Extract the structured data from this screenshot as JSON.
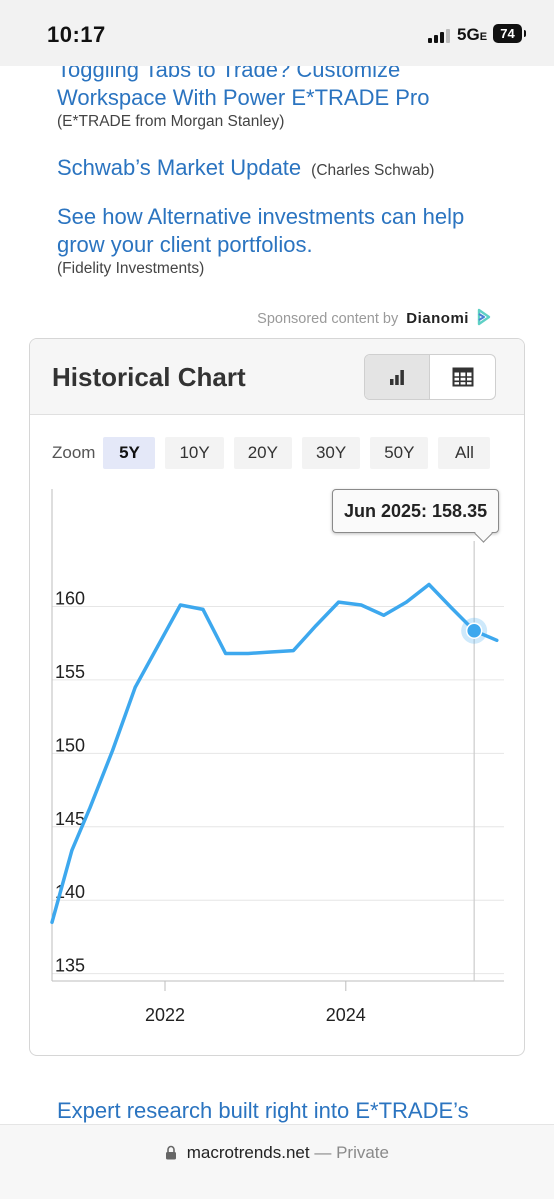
{
  "status_bar": {
    "time": "10:17",
    "network": "5G",
    "network_suffix": "E",
    "battery": "74"
  },
  "sponsored_links": [
    {
      "title_line1": "Toggling Tabs to Trade? Customize",
      "title_line2": "Workspace With Power E*TRADE Pro",
      "source": "(E*TRADE from Morgan Stanley)"
    },
    {
      "title": "Schwab’s Market Update",
      "source": "(Charles Schwab)"
    },
    {
      "title_line1": "See how Alternative investments can help",
      "title_line2": "grow your client portfolios.",
      "source": "(Fidelity Investments)"
    }
  ],
  "sponsored_footer": {
    "text": "Sponsored content by",
    "brand": "Dianomi"
  },
  "card": {
    "title": "Historical Chart",
    "view_buttons": [
      "bar-chart-icon",
      "table-icon"
    ],
    "zoom_label": "Zoom",
    "zoom_options": [
      "5Y",
      "10Y",
      "20Y",
      "30Y",
      "50Y",
      "All"
    ],
    "zoom_selected": "5Y"
  },
  "tooltip": {
    "text": "Jun 2025: 158.35"
  },
  "chart_data": {
    "type": "line",
    "ylim": [
      134.5,
      168
    ],
    "yticks": [
      135,
      140,
      145,
      150,
      155,
      160
    ],
    "xticks": [
      {
        "label": "2022",
        "x": 2022.0
      },
      {
        "label": "2024",
        "x": 2024.0
      }
    ],
    "xlim": [
      2020.75,
      2025.75
    ],
    "grid": true,
    "color": "#3da8ee",
    "series": [
      {
        "points": [
          [
            2020.75,
            138.5
          ],
          [
            2020.97,
            143.4
          ],
          [
            2021.17,
            146.3
          ],
          [
            2021.42,
            150.2
          ],
          [
            2021.67,
            154.5
          ],
          [
            2021.92,
            157.3
          ],
          [
            2022.17,
            160.1
          ],
          [
            2022.42,
            159.8
          ],
          [
            2022.67,
            156.8
          ],
          [
            2022.92,
            156.8
          ],
          [
            2023.17,
            156.9
          ],
          [
            2023.42,
            157.0
          ],
          [
            2023.67,
            158.7
          ],
          [
            2023.92,
            160.3
          ],
          [
            2024.17,
            160.1
          ],
          [
            2024.42,
            159.4
          ],
          [
            2024.67,
            160.3
          ],
          [
            2024.92,
            161.5
          ],
          [
            2025.17,
            159.9
          ],
          [
            2025.42,
            158.35
          ],
          [
            2025.67,
            157.7
          ]
        ]
      }
    ],
    "highlight": {
      "x": 2025.42,
      "y": 158.35
    }
  },
  "bottom_link": "Expert research built right into E*TRADE’s",
  "url_bar": {
    "domain": "macrotrends.net",
    "separator": "—",
    "mode": "Private"
  }
}
